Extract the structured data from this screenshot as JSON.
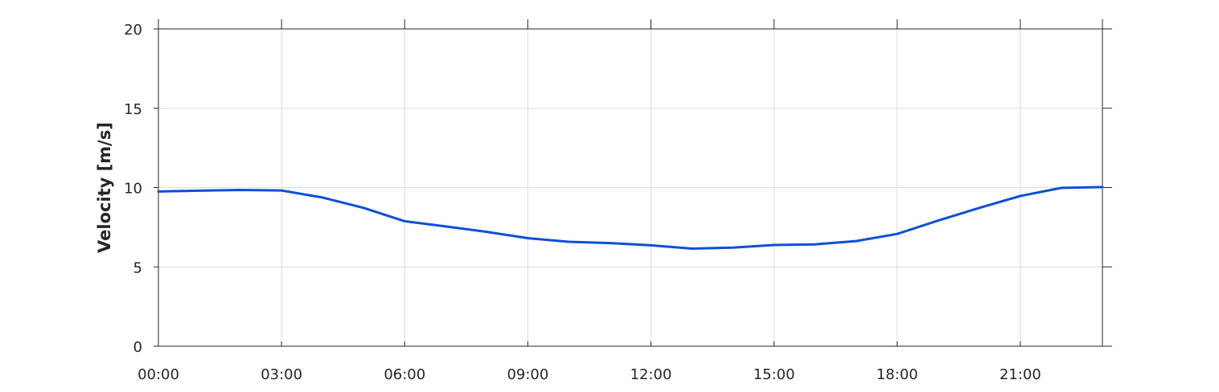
{
  "chart_data": {
    "type": "line",
    "title": "",
    "xlabel": "",
    "ylabel": "Velocity [m/s]",
    "x_tick_labels": [
      "00:00",
      "03:00",
      "06:00",
      "09:00",
      "12:00",
      "15:00",
      "18:00",
      "21:00"
    ],
    "x_ticks": [
      "00:00",
      "03:00",
      "06:00",
      "09:00",
      "12:00",
      "15:00",
      "18:00",
      "21:00"
    ],
    "xlim": [
      "00:00",
      "23:00"
    ],
    "y_ticks": [
      0,
      5,
      10,
      15,
      20
    ],
    "y_tick_labels": [
      "0",
      "5",
      "10",
      "15",
      "20"
    ],
    "ylim": [
      0,
      20
    ],
    "grid": true,
    "legend": "none",
    "series": [
      {
        "color": "#0a50d8",
        "x": [
          "00:00",
          "01:00",
          "02:00",
          "03:00",
          "04:00",
          "05:00",
          "06:00",
          "07:00",
          "08:00",
          "09:00",
          "10:00",
          "11:00",
          "12:00",
          "13:00",
          "14:00",
          "15:00",
          "16:00",
          "17:00",
          "18:00",
          "19:00",
          "20:00",
          "21:00",
          "22:00",
          "23:00"
        ],
        "values": [
          9.75,
          9.8,
          9.85,
          9.82,
          9.37,
          8.72,
          7.88,
          7.55,
          7.21,
          6.81,
          6.58,
          6.5,
          6.36,
          6.15,
          6.22,
          6.38,
          6.42,
          6.63,
          7.08,
          7.92,
          8.72,
          9.47,
          9.98,
          10.03
        ]
      }
    ]
  }
}
